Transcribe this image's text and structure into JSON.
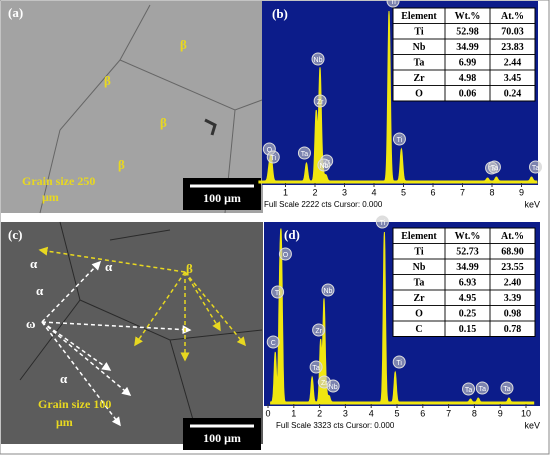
{
  "panels": [
    {
      "label": "(a)",
      "annotations": [
        "β",
        "β",
        "β",
        "β"
      ],
      "grain_size": [
        "Grain size 250",
        "μm"
      ],
      "scale_bar": "100 μm"
    },
    {
      "label": "(b)",
      "table": {
        "header": [
          "Element",
          "Wt.%",
          "At.%"
        ],
        "rows": [
          [
            "Ti",
            "52.98",
            "70.03"
          ],
          [
            "Nb",
            "34.99",
            "23.83"
          ],
          [
            "Ta",
            "6.99",
            "2.44"
          ],
          [
            "Zr",
            "4.98",
            "3.45"
          ],
          [
            "O",
            "0.06",
            "0.24"
          ]
        ]
      },
      "x_ticks": [
        1,
        2,
        3,
        4,
        5,
        6,
        7,
        8,
        9
      ],
      "x_unit": "keV",
      "footer": "Full Scale 2222 cts Cursor: 0.000",
      "peaks": [
        "O",
        "Ti",
        "Ta",
        "Zr",
        "Nb",
        "Zr",
        "Nb",
        "Ti",
        "Ti",
        "Ta",
        "Ta",
        "Ta"
      ]
    },
    {
      "label": "(c)",
      "annotations": [
        "α",
        "α",
        "α",
        "α",
        "ω",
        "β"
      ],
      "grain_size": [
        "Grain size 100",
        "μm"
      ],
      "scale_bar": "100 μm"
    },
    {
      "label": "(d)",
      "table": {
        "header": [
          "Element",
          "Wt.%",
          "At.%"
        ],
        "rows": [
          [
            "Ti",
            "52.73",
            "68.90"
          ],
          [
            "Nb",
            "34.99",
            "23.55"
          ],
          [
            "Ta",
            "6.93",
            "2.40"
          ],
          [
            "Zr",
            "4.95",
            "3.39"
          ],
          [
            "O",
            "0.25",
            "0.98"
          ],
          [
            "C",
            "0.15",
            "0.78"
          ]
        ]
      },
      "x_ticks": [
        0,
        1,
        2,
        3,
        4,
        5,
        6,
        7,
        8,
        9,
        10
      ],
      "x_unit": "keV",
      "footer": "Full Scale 3323 cts Cursor: 0.000",
      "peaks": [
        "C",
        "O",
        "Ti",
        "Ta",
        "Zr",
        "Nb",
        "Zr",
        "Nb",
        "Ti",
        "Ti",
        "Ta",
        "Ta",
        "Ta"
      ]
    }
  ]
}
